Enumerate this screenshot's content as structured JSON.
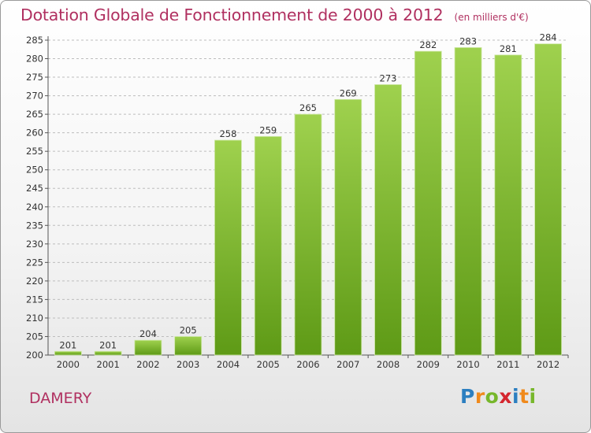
{
  "title": "Dotation Globale de Fonctionnement de 2000 à 2012",
  "unit": "(en milliers d'€)",
  "commune": "DAMERY",
  "logo": {
    "letters": [
      "P",
      "r",
      "o",
      "x",
      "i",
      "t",
      "i"
    ],
    "colors": [
      "#2c7fc0",
      "#f08a1c",
      "#77b72b",
      "#d4262e",
      "#2c7fc0",
      "#f08a1c",
      "#77b72b"
    ]
  },
  "colors": {
    "title": "#b03060",
    "bar_top": "#9fd14e",
    "bar_bottom": "#5e9a16",
    "grid": "#bdbdbd"
  },
  "chart_data": {
    "type": "bar",
    "title": "Dotation Globale de Fonctionnement de 2000 à 2012",
    "ylabel": "(en milliers d'€)",
    "categories": [
      "2000",
      "2001",
      "2002",
      "2003",
      "2004",
      "2005",
      "2006",
      "2007",
      "2008",
      "2009",
      "2010",
      "2011",
      "2012"
    ],
    "values": [
      201,
      201,
      204,
      205,
      258,
      259,
      265,
      269,
      273,
      282,
      283,
      281,
      284
    ],
    "ylim": [
      200,
      285
    ],
    "yticks": [
      200,
      205,
      210,
      215,
      220,
      225,
      230,
      235,
      240,
      245,
      250,
      255,
      260,
      265,
      270,
      275,
      280,
      285
    ],
    "grid": true,
    "grid_style": "dashed"
  }
}
